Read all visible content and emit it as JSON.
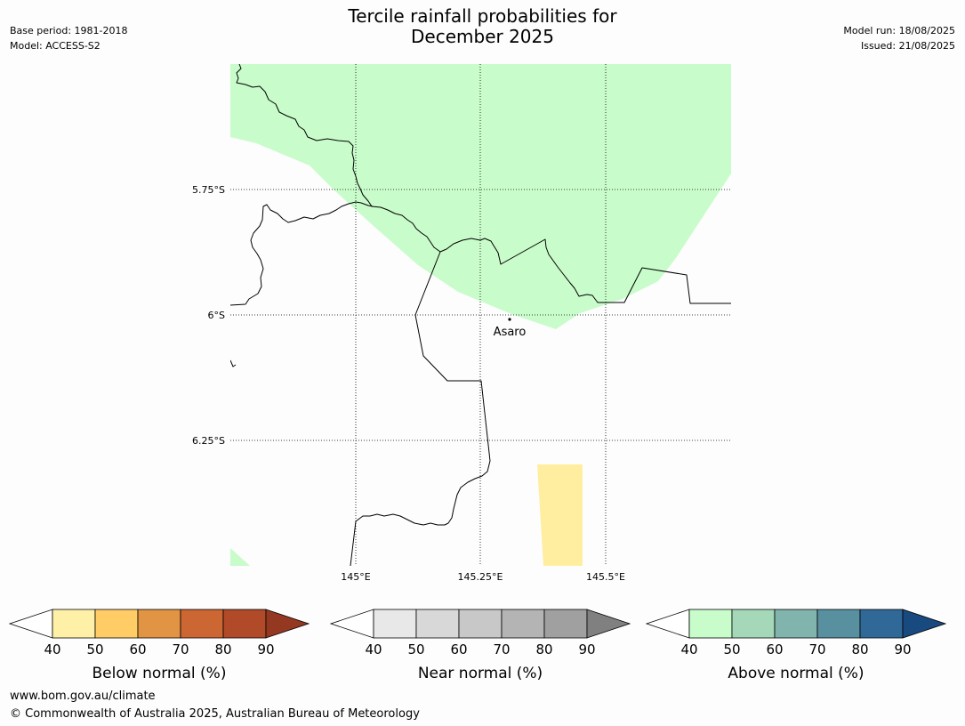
{
  "header": {
    "title_line1": "Tercile rainfall probabilities for",
    "title_line2": "December 2025",
    "base_period": "Base period: 1981-2018",
    "model": "Model: ACCESS-S2",
    "model_run": "Model run: 18/08/2025",
    "issued": "Issued: 21/08/2025"
  },
  "map": {
    "lat_labels": [
      "5.75°S",
      "6°S",
      "6.25°S"
    ],
    "lon_labels": [
      "145°E",
      "145.25°E",
      "145.5°E"
    ],
    "place": {
      "name": "Asaro"
    },
    "colors": {
      "above_40_50": "#c9fccb",
      "below_40_50": "#ffeea0",
      "border": "#000000",
      "gridline": "#000000"
    }
  },
  "colorbars": [
    {
      "label": "Below normal (%)",
      "ticks": [
        "40",
        "50",
        "60",
        "70",
        "80",
        "90"
      ],
      "colors": [
        "#fff0a8",
        "#ffcc66",
        "#e09444",
        "#cc6633",
        "#b04a28",
        "#943822"
      ]
    },
    {
      "label": "Near normal (%)",
      "ticks": [
        "40",
        "50",
        "60",
        "70",
        "80",
        "90"
      ],
      "colors": [
        "#e8e8e8",
        "#d8d8d8",
        "#c8c8c8",
        "#b4b4b4",
        "#a0a0a0",
        "#808080"
      ]
    },
    {
      "label": "Above normal (%)",
      "ticks": [
        "40",
        "50",
        "60",
        "70",
        "80",
        "90"
      ],
      "colors": [
        "#c8fcca",
        "#a4d8b8",
        "#80b4ac",
        "#5890a0",
        "#306898",
        "#184a80"
      ]
    }
  ],
  "footer": {
    "url": "www.bom.gov.au/climate",
    "copyright": "© Commonwealth of Australia 2025, Australian Bureau of Meteorology"
  }
}
